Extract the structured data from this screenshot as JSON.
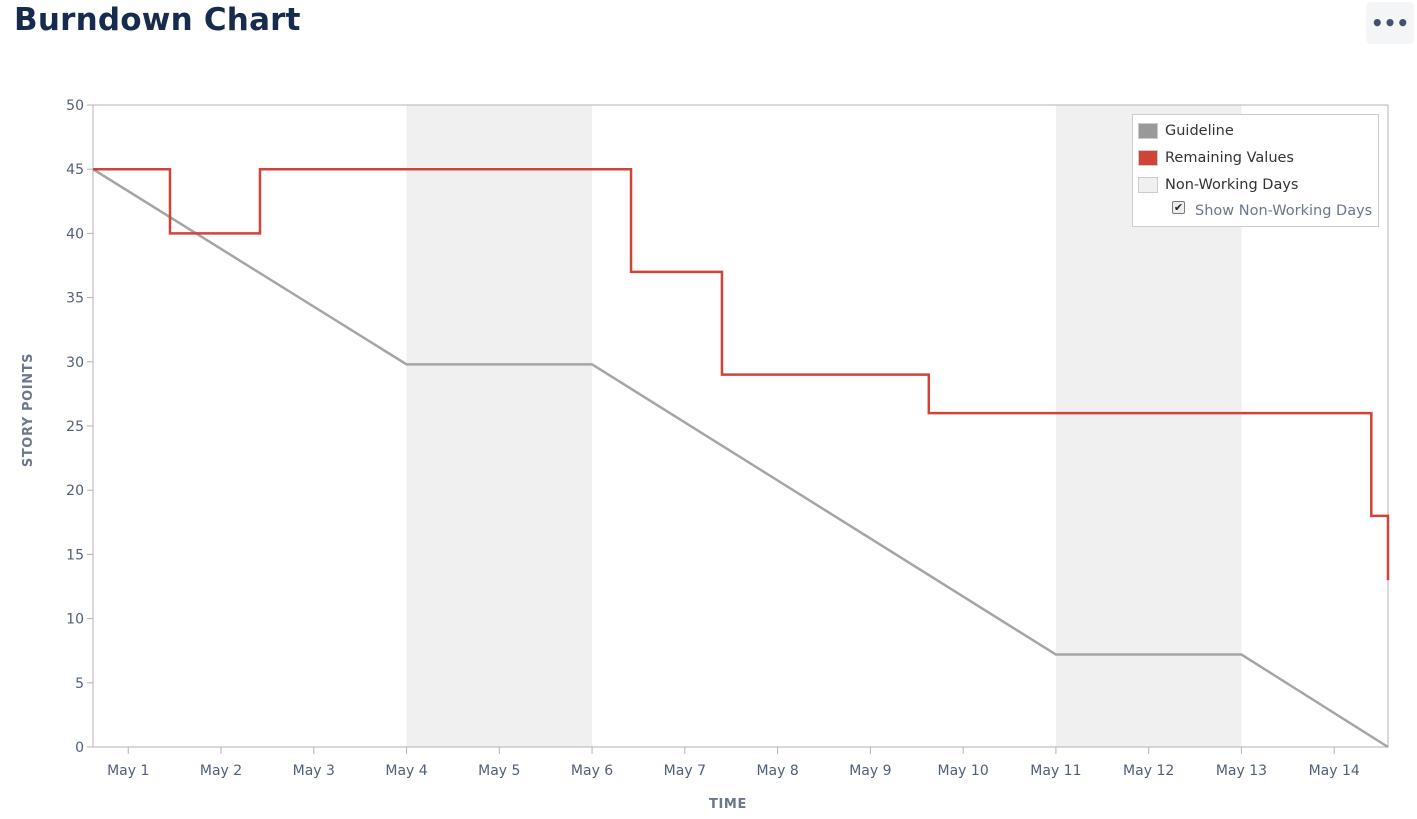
{
  "page": {
    "title": "Burndown Chart",
    "more_label": "•••"
  },
  "chart_data": {
    "type": "line",
    "xlabel": "TIME",
    "ylabel": "STORY POINTS",
    "ylim": [
      0,
      50
    ],
    "yticks": [
      0,
      5,
      10,
      15,
      20,
      25,
      30,
      35,
      40,
      45,
      50
    ],
    "xlim_days": [
      0.62,
      14.58
    ],
    "xticks": [
      {
        "label": "May 1",
        "day": 1
      },
      {
        "label": "May 2",
        "day": 2
      },
      {
        "label": "May 3",
        "day": 3
      },
      {
        "label": "May 4",
        "day": 4
      },
      {
        "label": "May 5",
        "day": 5
      },
      {
        "label": "May 6",
        "day": 6
      },
      {
        "label": "May 7",
        "day": 7
      },
      {
        "label": "May 8",
        "day": 8
      },
      {
        "label": "May 9",
        "day": 9
      },
      {
        "label": "May 10",
        "day": 10
      },
      {
        "label": "May 11",
        "day": 11
      },
      {
        "label": "May 12",
        "day": 12
      },
      {
        "label": "May 13",
        "day": 13
      },
      {
        "label": "May 14",
        "day": 14
      }
    ],
    "non_working_days": [
      {
        "start": 4,
        "end": 6
      },
      {
        "start": 11,
        "end": 13
      }
    ],
    "series": [
      {
        "name": "Guideline",
        "color": "#a5a5a5",
        "step": false,
        "points": [
          [
            0.62,
            45
          ],
          [
            4,
            29.8
          ],
          [
            6,
            29.8
          ],
          [
            11,
            7.2
          ],
          [
            13,
            7.2
          ],
          [
            14.58,
            0
          ]
        ]
      },
      {
        "name": "Remaining Values",
        "color": "#d04437",
        "step": true,
        "points": [
          [
            0.62,
            45
          ],
          [
            1.45,
            40
          ],
          [
            2.42,
            45
          ],
          [
            6.42,
            37
          ],
          [
            7.4,
            29
          ],
          [
            9.63,
            26
          ],
          [
            14.4,
            18
          ],
          [
            14.58,
            13
          ]
        ]
      }
    ],
    "legend": {
      "placement": "top-right",
      "items": [
        {
          "label": "Guideline",
          "color": "#999999"
        },
        {
          "label": "Remaining Values",
          "color": "#d04437"
        },
        {
          "label": "Non-Working Days",
          "color": "#f0f0f0"
        }
      ],
      "toggle_label": "Show Non-Working Days",
      "toggle_checked": true,
      "check_glyph": "✔"
    },
    "grid": false
  }
}
